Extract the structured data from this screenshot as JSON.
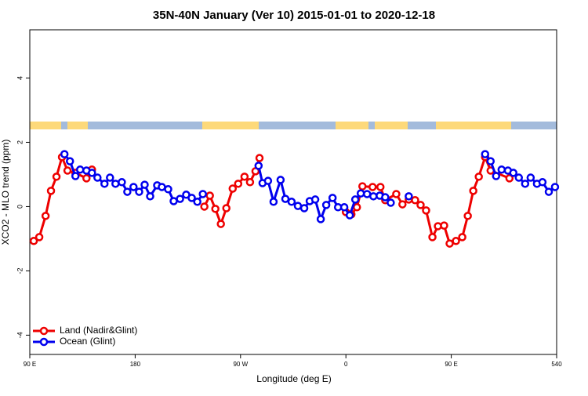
{
  "chart_data": {
    "type": "line",
    "title": "35N-40N January (Ver 10)   2015-01-01 to 2020-12-18",
    "xlabel": "Longitude (deg E)",
    "ylabel": "XCO2 - MLO trend (ppm)",
    "xlim": [
      90,
      540
    ],
    "xticks": [
      {
        "value": 90,
        "label": "90 E"
      },
      180,
      {
        "value": 270,
        "label": "90 W"
      },
      {
        "value": 360,
        "label": "0"
      },
      {
        "value": 450,
        "label": "90 E"
      },
      540
    ],
    "ylim": [
      -4.6,
      5.5
    ],
    "yticks": [
      -4,
      -2,
      0,
      2,
      4
    ],
    "legend": "bottom-left",
    "series": [
      {
        "name": "Land (Nadir&Glint)",
        "color": "#ee0000",
        "x": [
          93.4,
          98.1,
          103.5,
          108.1,
          112.8,
          117.5,
          122.2,
          128.9,
          138.4,
          143.1,
          null,
          239.1,
          243.8,
          248.5,
          253.2,
          257.9,
          263.3,
          268.0,
          273.4,
          278.1,
          282.8,
          286.2,
          null,
          360.0,
          364.7,
          369.4,
          374.1,
          382.8,
          389.5,
          393.6,
          403.0,
          408.3,
          413.7,
          419.1,
          423.8,
          428.5,
          433.9,
          438.6,
          443.9,
          448.6,
          454.0,
          459.4,
          464.1,
          468.8,
          473.5,
          478.9,
          483.6,
          499.7
        ],
        "values": [
          -1.07,
          -0.95,
          -0.29,
          0.49,
          0.93,
          1.54,
          1.12,
          1.05,
          0.88,
          1.15,
          null,
          0.0,
          0.34,
          -0.07,
          -0.54,
          -0.05,
          0.56,
          0.71,
          0.93,
          0.76,
          1.1,
          1.51,
          null,
          -0.17,
          -0.24,
          -0.02,
          0.63,
          0.61,
          0.61,
          0.2,
          0.39,
          0.07,
          0.22,
          0.2,
          0.05,
          -0.12,
          -0.95,
          -0.61,
          -0.59,
          -1.15,
          -1.07,
          -0.95,
          -0.29,
          0.49,
          0.93,
          1.54,
          1.12,
          0.88
        ]
      },
      {
        "name": "Ocean (Glint)",
        "color": "#0000ee",
        "x": [
          119.6,
          124.3,
          129.0,
          133.0,
          138.4,
          143.1,
          147.8,
          153.8,
          158.5,
          163.2,
          168.6,
          173.3,
          178.6,
          183.4,
          188.1,
          192.8,
          198.8,
          202.8,
          208.2,
          212.9,
          218.3,
          223.6,
          228.3,
          233.1,
          237.8,
          null,
          285.4,
          288.8,
          293.5,
          298.2,
          304.2,
          308.3,
          313.6,
          319.0,
          324.4,
          329.1,
          333.8,
          338.5,
          343.2,
          348.6,
          353.3,
          358.6,
          363.3,
          368.0,
          372.7,
          378.1,
          383.5,
          388.9,
          393.6,
          398.3,
          null,
          413.7,
          null,
          478.9,
          483.6,
          488.3,
          493.0,
          498.4,
          503.0,
          507.7,
          513.1,
          517.8,
          523.2,
          527.9,
          533.3,
          538.6
        ],
        "values": [
          1.63,
          1.41,
          0.95,
          1.15,
          1.12,
          1.05,
          0.9,
          0.71,
          0.9,
          0.71,
          0.76,
          0.46,
          0.61,
          0.46,
          0.68,
          0.32,
          0.66,
          0.61,
          0.54,
          0.17,
          0.24,
          0.37,
          0.27,
          0.15,
          0.39,
          null,
          1.27,
          0.73,
          0.8,
          0.15,
          0.83,
          0.24,
          0.15,
          0.02,
          -0.05,
          0.17,
          0.22,
          -0.39,
          0.05,
          0.27,
          -0.02,
          -0.02,
          -0.27,
          0.22,
          0.41,
          0.39,
          0.32,
          0.34,
          0.29,
          0.12,
          null,
          0.32,
          null,
          1.63,
          1.41,
          0.95,
          1.15,
          1.12,
          1.05,
          0.9,
          0.71,
          0.9,
          0.71,
          0.76,
          0.46,
          0.61
        ]
      }
    ]
  }
}
